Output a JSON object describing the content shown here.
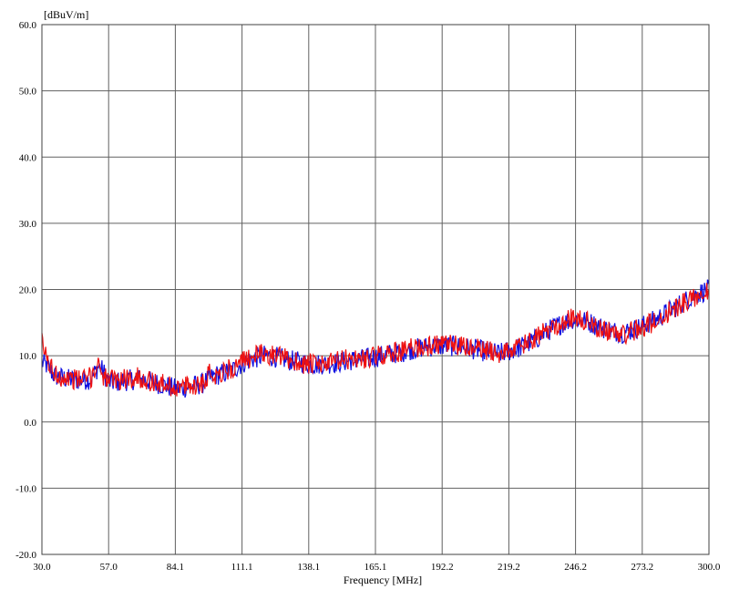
{
  "chart_data": {
    "type": "line",
    "title": "",
    "xlabel": "Frequency [MHz]",
    "ylabel": "[dBuV/m]",
    "xlim": [
      30.0,
      300.0
    ],
    "ylim": [
      -20.0,
      60.0
    ],
    "x_ticks": [
      "30.0",
      "57.0",
      "84.1",
      "111.1",
      "138.1",
      "165.1",
      "192.2",
      "219.2",
      "246.2",
      "273.2",
      "300.0"
    ],
    "y_ticks": [
      "60.0",
      "50.0",
      "40.0",
      "30.0",
      "20.0",
      "10.0",
      "0.0",
      "-10.0",
      "-20.0"
    ],
    "grid": true,
    "series": [
      {
        "color": "#1010e0",
        "x": [
          30,
          32,
          35,
          40,
          45,
          50,
          53,
          55,
          57,
          60,
          65,
          70,
          75,
          80,
          84,
          88,
          92,
          95,
          98,
          100,
          105,
          108,
          111,
          115,
          120,
          125,
          130,
          135,
          140,
          145,
          150,
          155,
          160,
          165,
          170,
          175,
          180,
          185,
          190,
          195,
          200,
          205,
          210,
          215,
          220,
          225,
          230,
          235,
          240,
          245,
          250,
          255,
          260,
          265,
          270,
          275,
          280,
          285,
          290,
          295,
          300
        ],
        "values": [
          9.0,
          8.5,
          7.0,
          6.5,
          6.3,
          6.5,
          8.5,
          7.5,
          6.0,
          6.0,
          6.3,
          6.5,
          6.0,
          5.5,
          5.0,
          5.2,
          5.5,
          5.8,
          6.5,
          7.0,
          7.5,
          8.0,
          8.8,
          9.5,
          10.0,
          9.8,
          9.3,
          9.0,
          8.7,
          8.8,
          9.0,
          9.3,
          9.5,
          9.8,
          10.2,
          10.5,
          11.0,
          11.3,
          11.5,
          11.5,
          11.3,
          11.0,
          10.6,
          10.3,
          10.8,
          11.5,
          12.5,
          13.8,
          14.8,
          15.6,
          15.3,
          14.5,
          13.8,
          13.5,
          14.0,
          14.8,
          15.8,
          17.0,
          18.2,
          19.3,
          20.0
        ]
      },
      {
        "color": "#ee1111",
        "x": [
          30,
          32,
          35,
          40,
          45,
          50,
          53,
          55,
          57,
          60,
          65,
          70,
          75,
          80,
          84,
          88,
          92,
          95,
          98,
          100,
          105,
          108,
          111,
          115,
          120,
          125,
          130,
          135,
          140,
          145,
          150,
          155,
          160,
          165,
          170,
          175,
          180,
          185,
          190,
          195,
          200,
          205,
          210,
          215,
          220,
          225,
          230,
          235,
          240,
          245,
          250,
          255,
          260,
          265,
          270,
          275,
          280,
          285,
          290,
          295,
          300
        ],
        "values": [
          12.0,
          9.5,
          7.2,
          6.7,
          6.4,
          6.8,
          9.0,
          7.0,
          6.2,
          6.3,
          6.6,
          6.7,
          6.0,
          5.6,
          5.2,
          5.3,
          5.6,
          6.0,
          7.5,
          7.2,
          7.8,
          8.2,
          9.0,
          10.0,
          10.3,
          9.9,
          9.4,
          8.9,
          8.6,
          8.7,
          9.2,
          9.5,
          9.6,
          9.9,
          10.3,
          10.6,
          11.2,
          11.4,
          11.6,
          11.6,
          11.4,
          11.1,
          10.8,
          10.4,
          10.9,
          11.6,
          12.6,
          14.0,
          15.0,
          15.7,
          15.2,
          14.3,
          13.6,
          13.3,
          13.8,
          14.6,
          15.6,
          16.9,
          18.0,
          19.1,
          20.2
        ]
      }
    ]
  }
}
